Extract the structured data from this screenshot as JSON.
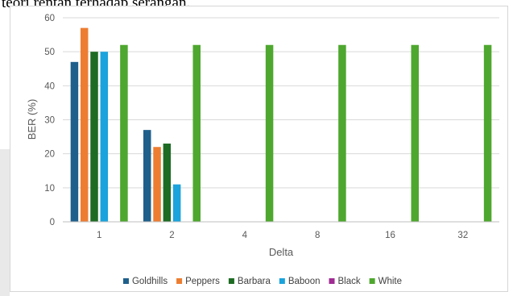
{
  "page": {
    "overflow_text": "teori rentan terhadap serangan."
  },
  "chart_data": {
    "type": "bar",
    "categories": [
      "1",
      "2",
      "4",
      "8",
      "16",
      "32"
    ],
    "series": [
      {
        "name": "Goldhills",
        "color": "#1f5f8b",
        "values": [
          47,
          27,
          0,
          0,
          0,
          0
        ]
      },
      {
        "name": "Peppers",
        "color": "#ed7d31",
        "values": [
          57,
          22,
          0,
          0,
          0,
          0
        ]
      },
      {
        "name": "Barbara",
        "color": "#1e6b24",
        "values": [
          50,
          23,
          0,
          0,
          0,
          0
        ]
      },
      {
        "name": "Baboon",
        "color": "#1aa3dc",
        "values": [
          50,
          11,
          0,
          0,
          0,
          0
        ]
      },
      {
        "name": "Black",
        "color": "#a02b93",
        "values": [
          0,
          0,
          0,
          0,
          0,
          0
        ]
      },
      {
        "name": "White",
        "color": "#4ea72e",
        "values": [
          52,
          52,
          52,
          52,
          52,
          52
        ]
      }
    ],
    "xlabel": "Delta",
    "ylabel": "BER (%)",
    "ylim": [
      0,
      60
    ],
    "yticks": [
      0,
      10,
      20,
      30,
      40,
      50,
      60
    ],
    "grid": "horizontal",
    "legend": "bottom"
  }
}
